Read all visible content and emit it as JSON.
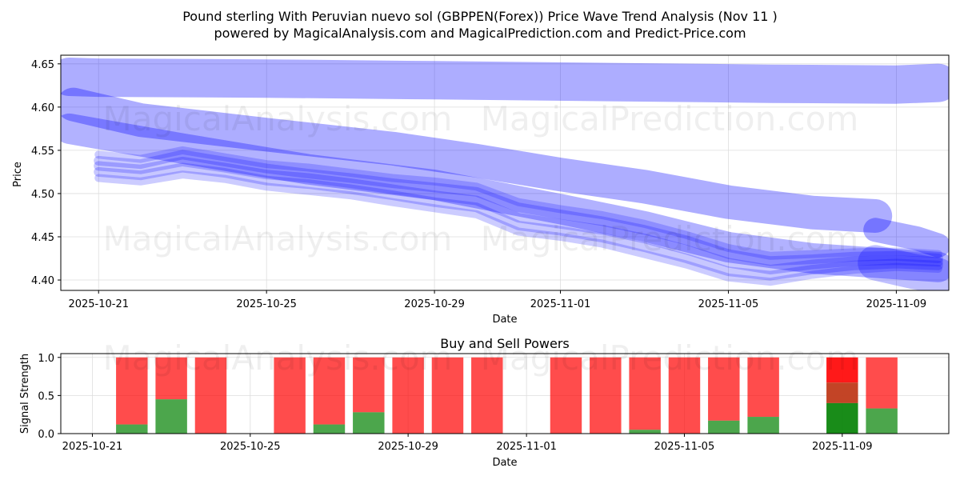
{
  "title_line1": "Pound sterling With Peruvian nuevo sol (GBPPEN(Forex)) Price Wave Trend Analysis (Nov 11 )",
  "title_line2": "powered by MagicalAnalysis.com and MagicalPrediction.com and Predict-Price.com",
  "watermarks": [
    "MagicalAnalysis.com",
    "MagicalPrediction.com"
  ],
  "colors": {
    "wave": "#0000ff",
    "buy": "#008000",
    "sell": "#ff0000",
    "grid": "#dddddd"
  },
  "chart_data": [
    {
      "type": "line",
      "name": "price-wave",
      "title": "",
      "xlabel": "Date",
      "ylabel": "Price",
      "ylim": [
        4.388,
        4.66
      ],
      "x_range_days": [
        -0.9,
        20.25
      ],
      "date_origin": "2025-10-21",
      "x_tick_labels": [
        "2025-10-21",
        "2025-10-25",
        "2025-10-29",
        "2025-11-01",
        "2025-11-05",
        "2025-11-09"
      ],
      "x_tick_days": [
        0,
        4,
        8,
        11,
        15,
        19
      ],
      "y_ticks": [
        4.4,
        4.45,
        4.5,
        4.55,
        4.6,
        4.65
      ],
      "y_tick_labels": [
        "4.40",
        "4.45",
        "4.50",
        "4.55",
        "4.60",
        "4.65"
      ],
      "grid": true,
      "bands": [
        {
          "name": "top-band",
          "x": [
            -0.7,
            0,
            4,
            8,
            12,
            16,
            19,
            20
          ],
          "y": [
            4.635,
            4.634,
            4.633,
            4.631,
            4.629,
            4.627,
            4.626,
            4.628
          ],
          "width": 48,
          "alpha": 0.32
        },
        {
          "name": "upper-band",
          "x": [
            -0.6,
            1,
            4,
            7,
            9,
            11,
            13,
            15,
            17,
            18.5
          ],
          "y": [
            4.603,
            4.585,
            4.568,
            4.552,
            4.538,
            4.522,
            4.508,
            4.49,
            4.478,
            4.474
          ],
          "width": 42,
          "alpha": 0.32
        },
        {
          "name": "wide-trend",
          "x": [
            -0.7,
            2,
            5,
            8,
            11,
            13,
            15,
            17,
            20
          ],
          "y": [
            4.575,
            4.552,
            4.528,
            4.51,
            4.482,
            4.462,
            4.438,
            4.425,
            4.415
          ],
          "width": 38,
          "alpha": 0.3
        },
        {
          "name": "forecast-band",
          "x": [
            18.5,
            19.5,
            20
          ],
          "y": [
            4.458,
            4.448,
            4.44
          ],
          "width": 30,
          "alpha": 0.32
        },
        {
          "name": "right-end",
          "x": [
            18.5,
            19.4,
            20
          ],
          "y": [
            4.42,
            4.41,
            4.405
          ],
          "width": 44,
          "alpha": 0.25
        },
        {
          "name": "core-1",
          "x": [
            0,
            1,
            2,
            3,
            4,
            5,
            6,
            7,
            8,
            9,
            10,
            11,
            12,
            13,
            14,
            15,
            16,
            17,
            18,
            19,
            20
          ],
          "y": [
            4.532,
            4.528,
            4.537,
            4.53,
            4.522,
            4.518,
            4.512,
            4.505,
            4.498,
            4.492,
            4.472,
            4.465,
            4.458,
            4.448,
            4.435,
            4.42,
            4.412,
            4.418,
            4.422,
            4.423,
            4.421
          ],
          "width": 12,
          "alpha": 0.22
        },
        {
          "name": "core-2",
          "x": [
            0,
            1,
            2,
            3,
            4,
            5,
            6,
            7,
            8,
            9,
            10,
            11,
            12,
            13,
            14,
            15,
            16,
            17,
            18,
            19,
            20
          ],
          "y": [
            4.538,
            4.534,
            4.545,
            4.537,
            4.529,
            4.523,
            4.518,
            4.512,
            4.507,
            4.502,
            4.484,
            4.476,
            4.468,
            4.458,
            4.446,
            4.43,
            4.422,
            4.424,
            4.427,
            4.428,
            4.425
          ],
          "width": 12,
          "alpha": 0.22
        },
        {
          "name": "core-3",
          "x": [
            0,
            1,
            2,
            3,
            4,
            5,
            6,
            7,
            8,
            9,
            10,
            11,
            12,
            13,
            14,
            15,
            16,
            17,
            18,
            19,
            20
          ],
          "y": [
            4.525,
            4.521,
            4.53,
            4.524,
            4.515,
            4.511,
            4.505,
            4.498,
            4.49,
            4.484,
            4.463,
            4.457,
            4.449,
            4.438,
            4.425,
            4.41,
            4.405,
            4.412,
            4.417,
            4.419,
            4.417
          ],
          "width": 12,
          "alpha": 0.22
        },
        {
          "name": "core-4",
          "x": [
            0,
            1,
            2,
            3,
            4,
            5,
            6,
            7,
            8,
            9,
            10,
            11,
            12,
            13,
            14,
            15,
            16,
            17,
            18,
            19,
            20
          ],
          "y": [
            4.545,
            4.54,
            4.55,
            4.542,
            4.534,
            4.53,
            4.524,
            4.518,
            4.514,
            4.508,
            4.49,
            4.482,
            4.475,
            4.465,
            4.452,
            4.437,
            4.428,
            4.43,
            4.432,
            4.433,
            4.43
          ],
          "width": 10,
          "alpha": 0.2
        },
        {
          "name": "core-5",
          "x": [
            0,
            1,
            2,
            3,
            4,
            5,
            6,
            7,
            8,
            9,
            10,
            11,
            12,
            13,
            14,
            15,
            16,
            17,
            18,
            19,
            20
          ],
          "y": [
            4.518,
            4.514,
            4.522,
            4.517,
            4.508,
            4.503,
            4.498,
            4.49,
            4.483,
            4.476,
            4.456,
            4.45,
            4.442,
            4.43,
            4.418,
            4.403,
            4.398,
            4.406,
            4.412,
            4.415,
            4.413
          ],
          "width": 10,
          "alpha": 0.2
        }
      ]
    },
    {
      "type": "bar",
      "name": "buy-sell-powers",
      "title": "Buy and Sell Powers",
      "xlabel": "Date",
      "ylabel": "Signal Strength",
      "ylim": [
        0,
        1.05
      ],
      "x_range_days": [
        -0.8,
        21.7
      ],
      "date_origin": "2025-10-21",
      "y_ticks": [
        0,
        0.5,
        1.0
      ],
      "y_tick_labels": [
        "0.0",
        "0.5",
        "1.0"
      ],
      "x_tick_labels": [
        "2025-10-21",
        "2025-10-25",
        "2025-10-29",
        "2025-11-01",
        "2025-11-05",
        "2025-11-09"
      ],
      "x_tick_days": [
        0,
        4,
        8,
        11,
        15,
        19
      ],
      "bar_width_days": 0.8,
      "bars": [
        {
          "day": 1,
          "buy": 0.12
        },
        {
          "day": 2,
          "buy": 0.45
        },
        {
          "day": 3,
          "buy": 0.0
        },
        {
          "day": 5,
          "buy": 0.0
        },
        {
          "day": 6,
          "buy": 0.12
        },
        {
          "day": 7,
          "buy": 0.28
        },
        {
          "day": 8,
          "buy": 0.0
        },
        {
          "day": 9,
          "buy": 0.0
        },
        {
          "day": 10,
          "buy": 0.0
        },
        {
          "day": 12,
          "buy": 0.0
        },
        {
          "day": 13,
          "buy": 0.0
        },
        {
          "day": 14,
          "buy": 0.05
        },
        {
          "day": 15,
          "buy": 0.0
        },
        {
          "day": 16,
          "buy": 0.17
        },
        {
          "day": 17,
          "buy": 0.22
        },
        {
          "day": 19,
          "buy": 0.4,
          "strong": true,
          "mid": 0.67
        },
        {
          "day": 20,
          "buy": 0.33
        }
      ]
    }
  ]
}
